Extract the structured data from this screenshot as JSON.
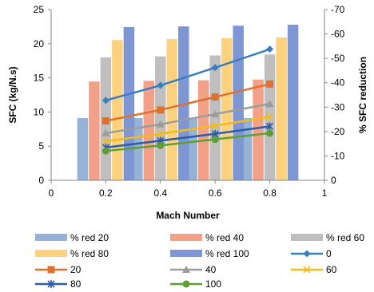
{
  "chart_data": {
    "type": "bar+line",
    "xlabel": "Mach Number",
    "ylabel": "SFC (kg/N.s)",
    "y2label": "% SFC reduction",
    "x_ticks": [
      "0",
      "0.2",
      "0.4",
      "0.6",
      "0.8",
      "1"
    ],
    "y_ticks": [
      "0",
      "5",
      "10",
      "15",
      "20",
      "25"
    ],
    "y2_ticks": [
      "0",
      "-10",
      "-20",
      "-30",
      "-40",
      "-50",
      "-60",
      "-70"
    ],
    "xlim": [
      0,
      1
    ],
    "ylim": [
      0,
      25
    ],
    "y2lim": [
      0,
      -70
    ],
    "grid": false,
    "legend_position": "bottom",
    "bar_series": [
      {
        "name": "% red 20",
        "color": "#95b3d7",
        "axis": "secondary",
        "x": [
          0.2,
          0.4,
          0.6,
          0.8
        ],
        "values": [
          -25.5,
          -25.5,
          -25.5,
          -25.5
        ]
      },
      {
        "name": "% red 40",
        "color": "#f2a188",
        "axis": "secondary",
        "x": [
          0.2,
          0.4,
          0.6,
          0.8
        ],
        "values": [
          -40.5,
          -40.8,
          -41.0,
          -41.3
        ]
      },
      {
        "name": "% red 60",
        "color": "#bfbfbf",
        "axis": "secondary",
        "x": [
          0.2,
          0.4,
          0.6,
          0.8
        ],
        "values": [
          -50.4,
          -50.8,
          -51.2,
          -51.6
        ]
      },
      {
        "name": "% red 80",
        "color": "#fcd27f",
        "axis": "secondary",
        "x": [
          0.2,
          0.4,
          0.6,
          0.8
        ],
        "values": [
          -57.5,
          -57.9,
          -58.3,
          -58.6
        ]
      },
      {
        "name": "% red 100",
        "color": "#7e96d4",
        "axis": "secondary",
        "x": [
          0.2,
          0.4,
          0.6,
          0.8
        ],
        "values": [
          -62.8,
          -63.1,
          -63.4,
          -63.8
        ]
      }
    ],
    "line_series": [
      {
        "name": "0",
        "color": "#3a7ebf",
        "marker": "diamond",
        "axis": "primary",
        "x": [
          0.2,
          0.4,
          0.6,
          0.8
        ],
        "values": [
          11.7,
          13.9,
          16.5,
          19.2
        ]
      },
      {
        "name": "20",
        "color": "#e0702e",
        "marker": "square",
        "axis": "primary",
        "x": [
          0.2,
          0.4,
          0.6,
          0.8
        ],
        "values": [
          8.7,
          10.3,
          12.2,
          14.1
        ]
      },
      {
        "name": "40",
        "color": "#9c9c9c",
        "marker": "triangle",
        "axis": "primary",
        "x": [
          0.2,
          0.4,
          0.6,
          0.8
        ],
        "values": [
          6.9,
          8.2,
          9.7,
          11.2
        ]
      },
      {
        "name": "60",
        "color": "#f2bb1d",
        "marker": "x",
        "axis": "primary",
        "x": [
          0.2,
          0.4,
          0.6,
          0.8
        ],
        "values": [
          5.7,
          6.8,
          8.0,
          9.3
        ]
      },
      {
        "name": "80",
        "color": "#2e5da8",
        "marker": "star",
        "axis": "primary",
        "x": [
          0.2,
          0.4,
          0.6,
          0.8
        ],
        "values": [
          4.8,
          5.8,
          6.8,
          7.9
        ]
      },
      {
        "name": "100",
        "color": "#5d9e35",
        "marker": "circle",
        "axis": "primary",
        "x": [
          0.2,
          0.4,
          0.6,
          0.8
        ],
        "values": [
          4.3,
          5.1,
          6.0,
          6.9
        ]
      }
    ],
    "legend_order": [
      "% red 20",
      "% red 40",
      "% red 60",
      "% red 80",
      "% red 100",
      "0",
      "20",
      "40",
      "60",
      "80",
      "100"
    ]
  }
}
